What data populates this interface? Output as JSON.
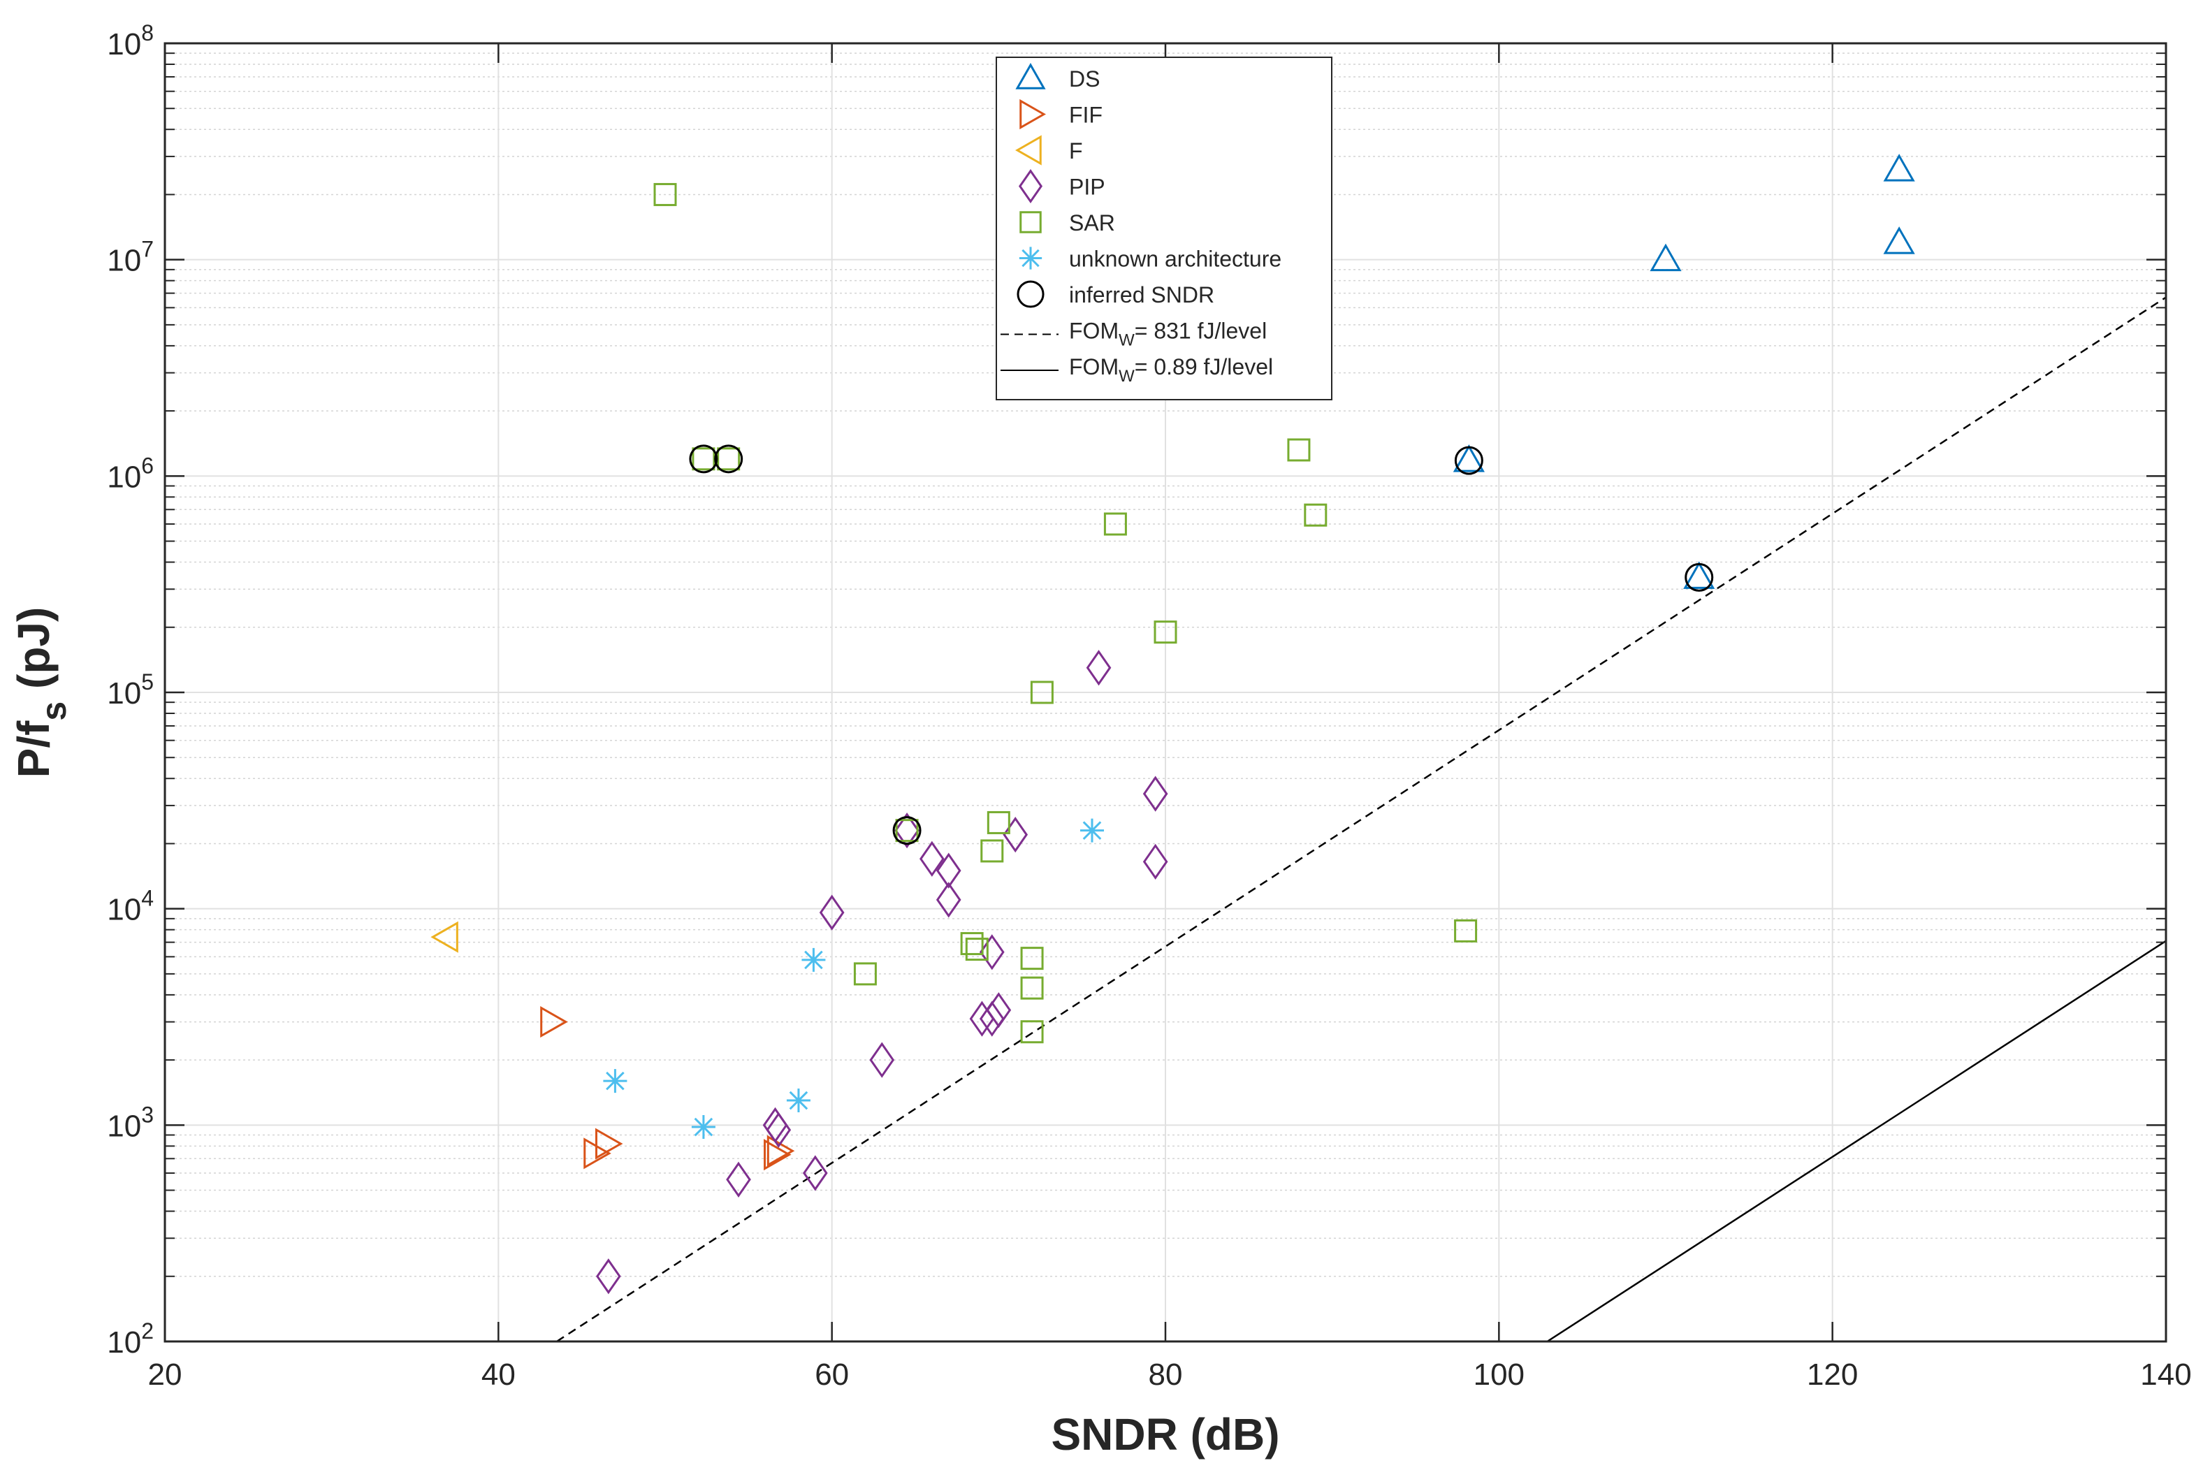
{
  "chart_data": {
    "type": "scatter",
    "xlabel": "SNDR (dB)",
    "ylabel": {
      "main": "P/f",
      "sub": "s",
      "unit": " (pJ)"
    },
    "xlim": [
      20,
      140
    ],
    "ylim": [
      100,
      100000000
    ],
    "yscale": "log",
    "grid": true,
    "x_ticks": [
      20,
      40,
      60,
      80,
      100,
      120,
      140
    ],
    "y_ticks": [
      {
        "base": "10",
        "exp": "2"
      },
      {
        "base": "10",
        "exp": "3"
      },
      {
        "base": "10",
        "exp": "4"
      },
      {
        "base": "10",
        "exp": "5"
      },
      {
        "base": "10",
        "exp": "6"
      },
      {
        "base": "10",
        "exp": "7"
      },
      {
        "base": "10",
        "exp": "8"
      }
    ],
    "legend_position": "top-center",
    "series": [
      {
        "name": "DS",
        "marker": "triangle-up",
        "color": "#0072BD",
        "points": [
          [
            124,
            26000000
          ],
          [
            124,
            12000000
          ],
          [
            110,
            10000000
          ],
          [
            98.2,
            1180000
          ],
          [
            112,
            340000
          ]
        ]
      },
      {
        "name": "FIF",
        "marker": "triangle-right",
        "color": "#D95319",
        "points": [
          [
            43.2,
            3000
          ],
          [
            46.5,
            820
          ],
          [
            45.8,
            740
          ],
          [
            56.8,
            760
          ],
          [
            56.6,
            730
          ]
        ]
      },
      {
        "name": "F",
        "marker": "triangle-left",
        "color": "#EDB120",
        "points": [
          [
            36.9,
            7400
          ]
        ]
      },
      {
        "name": "PIP",
        "marker": "diamond",
        "color": "#7E2F8E",
        "points": [
          [
            64.5,
            23000
          ],
          [
            66,
            17000
          ],
          [
            67,
            15000
          ],
          [
            67,
            11000
          ],
          [
            71,
            22000
          ],
          [
            60,
            9600
          ],
          [
            69.6,
            6300
          ],
          [
            76,
            130000
          ],
          [
            79.4,
            34000
          ],
          [
            79.4,
            16500
          ],
          [
            63,
            2000
          ],
          [
            69,
            3100
          ],
          [
            70,
            3400
          ],
          [
            69.6,
            3100
          ],
          [
            56.6,
            1000
          ],
          [
            56.8,
            950
          ],
          [
            54.4,
            560
          ],
          [
            59,
            600
          ],
          [
            46.6,
            200
          ]
        ]
      },
      {
        "name": "SAR",
        "marker": "square",
        "color": "#77AC30",
        "points": [
          [
            50,
            20000000
          ],
          [
            52.3,
            1200000
          ],
          [
            53.8,
            1200000
          ],
          [
            88,
            1320000
          ],
          [
            89,
            660000
          ],
          [
            77,
            600000
          ],
          [
            80,
            190000
          ],
          [
            72.6,
            100000
          ],
          [
            64.5,
            23000
          ],
          [
            70,
            25000
          ],
          [
            69.6,
            18500
          ],
          [
            68.4,
            6900
          ],
          [
            68.7,
            6500
          ],
          [
            72,
            5900
          ],
          [
            62,
            5000
          ],
          [
            72,
            4300
          ],
          [
            72,
            2700
          ],
          [
            98,
            7900
          ]
        ]
      },
      {
        "name": "unknown architecture",
        "marker": "asterisk",
        "color": "#4DBEEE",
        "points": [
          [
            75.6,
            23000
          ],
          [
            58.9,
            5800
          ],
          [
            47,
            1600
          ],
          [
            58,
            1300
          ],
          [
            52.3,
            980
          ]
        ]
      },
      {
        "name": "inferred SNDR",
        "marker": "circle",
        "color": "#000000",
        "points": [
          [
            52.3,
            1200000
          ],
          [
            53.8,
            1200000
          ],
          [
            98.2,
            1180000
          ],
          [
            112,
            340000
          ],
          [
            64.5,
            23000
          ]
        ]
      }
    ],
    "lines": [
      {
        "name": "FOM_W = 831 fJ/level",
        "style": "dashed",
        "color": "#000000",
        "points": [
          [
            43.5,
            100
          ],
          [
            140,
            6700000
          ]
        ]
      },
      {
        "name": "FOM_W = 0.89 fJ/level",
        "style": "solid",
        "color": "#000000",
        "points": [
          [
            102.9,
            100
          ],
          [
            140,
            7100
          ]
        ]
      }
    ],
    "legend": [
      {
        "label": "DS",
        "marker": "triangle-up",
        "color": "#0072BD"
      },
      {
        "label": "FIF",
        "marker": "triangle-right",
        "color": "#D95319"
      },
      {
        "label": "F",
        "marker": "triangle-left",
        "color": "#EDB120"
      },
      {
        "label": "PIP",
        "marker": "diamond",
        "color": "#7E2F8E"
      },
      {
        "label": "SAR",
        "marker": "square",
        "color": "#77AC30"
      },
      {
        "label": "unknown architecture",
        "marker": "asterisk",
        "color": "#4DBEEE"
      },
      {
        "label": "inferred SNDR",
        "marker": "circle",
        "color": "#000000"
      },
      {
        "label": "= 831 fJ/level",
        "prefix": "FOM",
        "sub": "W",
        "marker": "dashed-line",
        "color": "#000000"
      },
      {
        "label": "= 0.89 fJ/level",
        "prefix": "FOM",
        "sub": "W",
        "marker": "solid-line",
        "color": "#000000"
      }
    ]
  }
}
